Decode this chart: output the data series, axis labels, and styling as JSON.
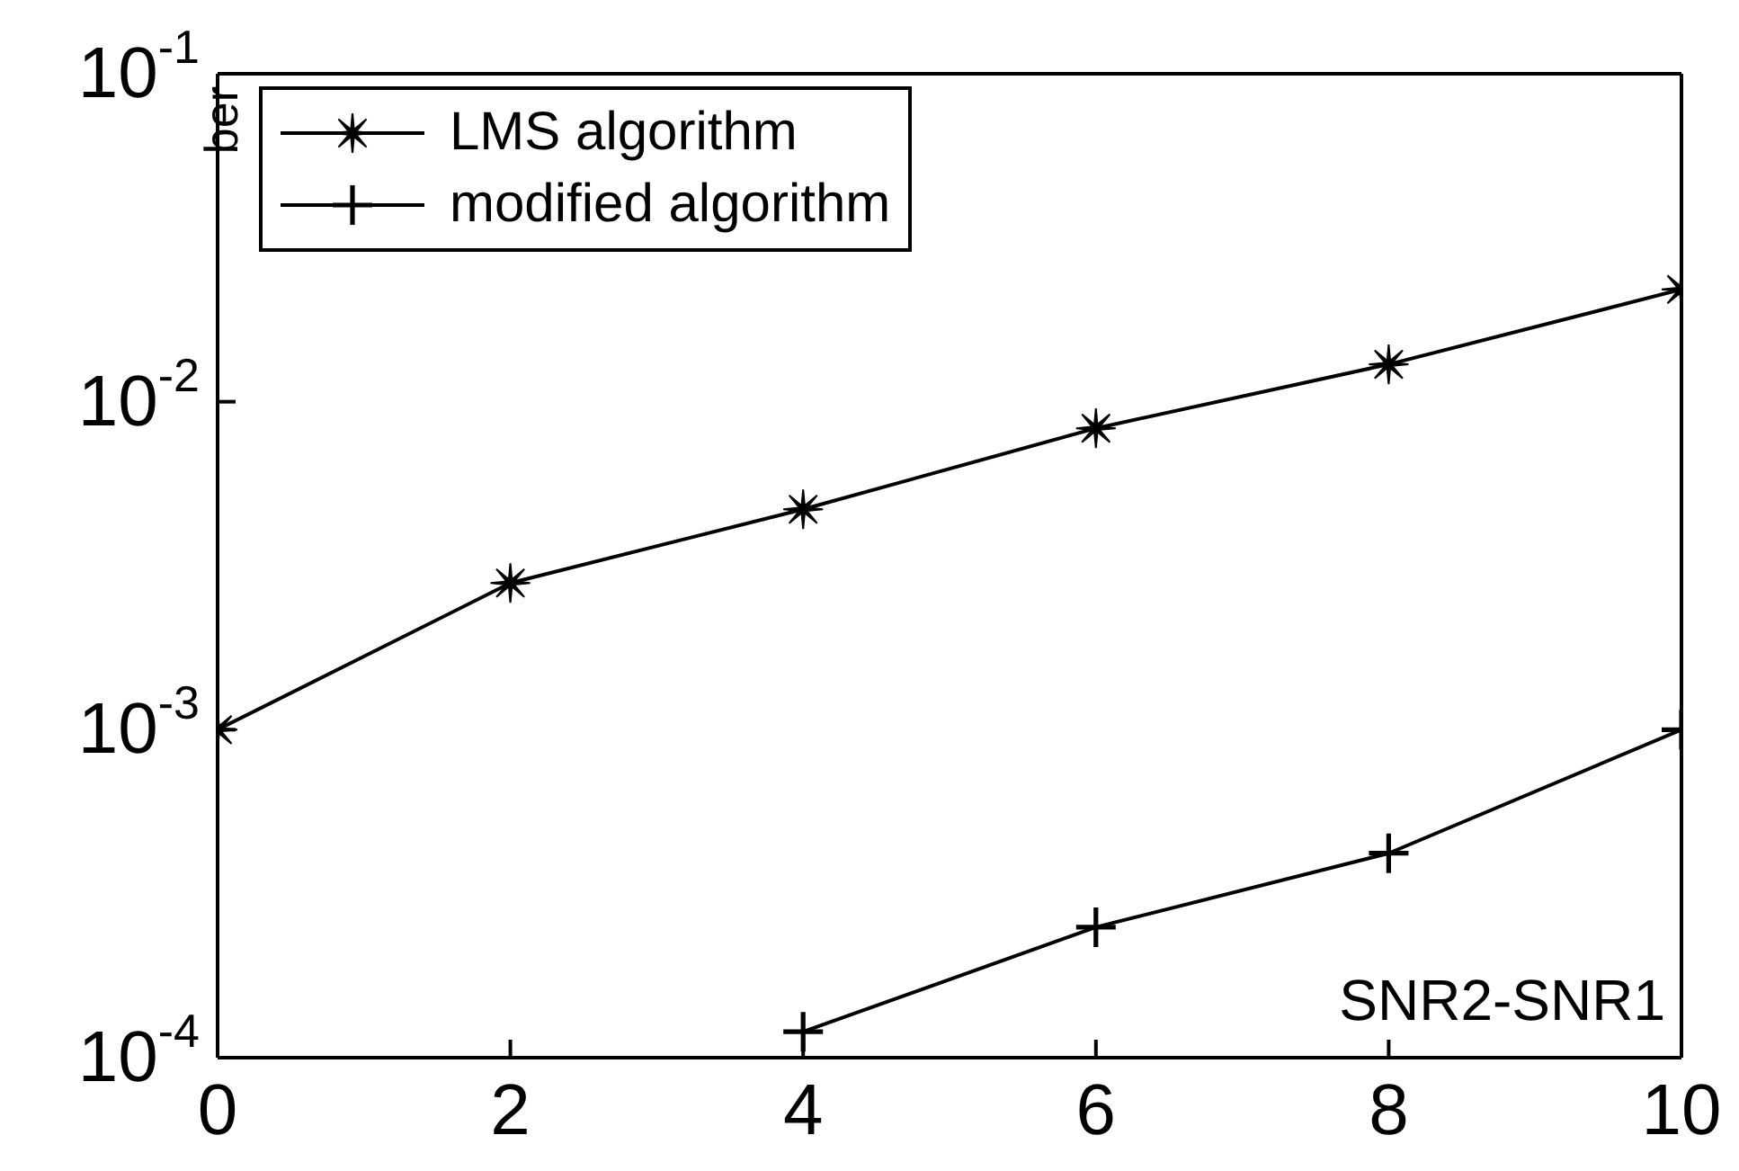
{
  "chart_data": {
    "type": "line",
    "xlabel": "SNR2-SNR1",
    "ylabel": "ber",
    "x": [
      0,
      2,
      4,
      6,
      8,
      10
    ],
    "series": [
      {
        "name": "LMS algorithm",
        "color": "#000000",
        "marker": "star",
        "values": [
          0.001,
          0.0028,
          0.0047,
          0.0083,
          0.013,
          0.022
        ]
      },
      {
        "name": "modified algorithm",
        "color": "#000000",
        "marker": "cross",
        "values": [
          null,
          null,
          0.00012,
          0.00025,
          0.00042,
          0.001
        ]
      }
    ],
    "log": "y",
    "xlim": [
      0,
      10
    ],
    "xticks": [
      0,
      2,
      4,
      6,
      8,
      10
    ],
    "ylim": [
      0.0001,
      0.1
    ],
    "yticks": [
      {
        "value": 0.0001,
        "label": "10$^{-4}$"
      },
      {
        "value": 0.001,
        "label": "10$^{-3}$"
      },
      {
        "value": 0.01,
        "label": "10$^{-2}$"
      },
      {
        "value": 0.1,
        "label": "10$^{-1}$"
      }
    ],
    "grid": false,
    "legend": "top left",
    "line_style": "solid"
  }
}
